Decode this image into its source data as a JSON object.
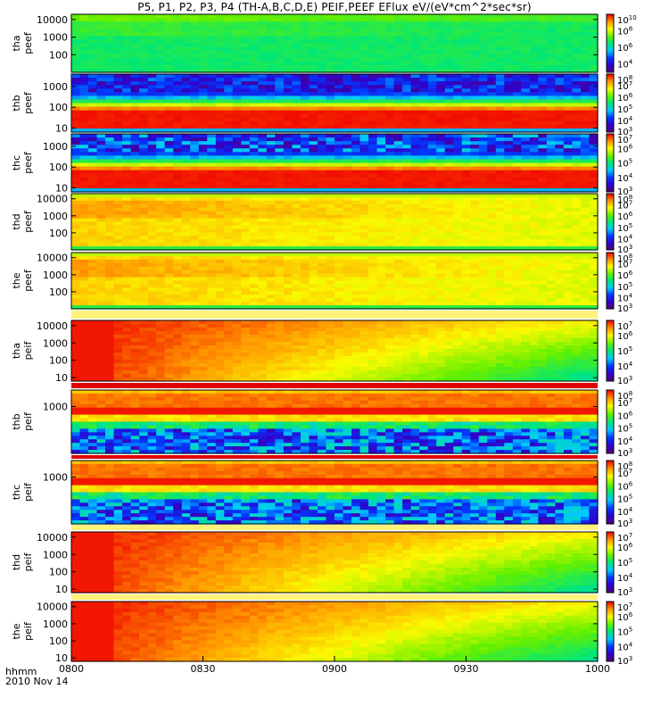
{
  "chart_data": {
    "type": "heatmap",
    "title": "P5, P1, P2, P3, P4 (TH-A,B,C,D,E) PEIF,PEEF EFlux eV/(eV*cm^2*sec*sr)",
    "x_axis": {
      "range": [
        "0800",
        "1000"
      ],
      "tick_labels": [
        "0800",
        "0830",
        "0900",
        "0930",
        "1000"
      ],
      "row_label": "hhmm",
      "date_label": "2010 Nov 14"
    },
    "panels": [
      {
        "probe": "tha",
        "product": "peef",
        "ylabels": [
          "10000",
          "1000",
          "100"
        ],
        "ylim_exp": [
          1,
          4.3
        ],
        "cbar_range_exp": [
          3,
          10
        ],
        "cbar_labels": [
          "10^10",
          "10^8",
          "10^6",
          "10^4"
        ],
        "pattern": "green_uniform"
      },
      {
        "probe": "thb",
        "product": "peef",
        "ylabels": [
          "1000",
          "100",
          "10"
        ],
        "ylim_exp": [
          0.8,
          3.6
        ],
        "cbar_range_exp": [
          3,
          8
        ],
        "cbar_labels": [
          "10^8",
          "10^7",
          "10^6",
          "10^5",
          "10^4",
          "10^3"
        ],
        "pattern": "band_low_red"
      },
      {
        "probe": "thc",
        "product": "peef",
        "ylabels": [
          "1000",
          "100",
          "10"
        ],
        "ylim_exp": [
          0.8,
          3.6
        ],
        "cbar_range_exp": [
          3,
          7
        ],
        "cbar_labels": [
          "10^7",
          "10^6",
          "10^5",
          "10^4",
          "10^3"
        ],
        "pattern": "band_low_red_noisy"
      },
      {
        "probe": "thd",
        "product": "peef",
        "ylabels": [
          "10000",
          "1000",
          "100"
        ],
        "ylim_exp": [
          1,
          4.3
        ],
        "cbar_range_exp": [
          3,
          8
        ],
        "cbar_labels": [
          "10^8",
          "10^7",
          "10^6",
          "10^5",
          "10^4",
          "10^3"
        ],
        "pattern": "yellow_orange"
      },
      {
        "probe": "the",
        "product": "peef",
        "ylabels": [
          "10000",
          "1000",
          "100"
        ],
        "ylim_exp": [
          1,
          4.3
        ],
        "cbar_range_exp": [
          3,
          8
        ],
        "cbar_labels": [
          "10^8",
          "10^7",
          "10^6",
          "10^5",
          "10^4",
          "10^3"
        ],
        "pattern": "yellow_orange"
      },
      {
        "probe": "tha",
        "product": "peif",
        "ylabels": [
          "10000",
          "1000",
          "100",
          "10"
        ],
        "ylim_exp": [
          0.8,
          4.3
        ],
        "cbar_range_exp": [
          3,
          7
        ],
        "cbar_labels": [
          "10^7",
          "10^6",
          "10^5",
          "10^4",
          "10^3"
        ],
        "pattern": "ion_decay"
      },
      {
        "probe": "thb",
        "product": "peif",
        "ylabels": [
          "1000"
        ],
        "ylim_exp": [
          1.3,
          3.6
        ],
        "cbar_range_exp": [
          3,
          8
        ],
        "cbar_labels": [
          "10^8",
          "10^7",
          "10^6",
          "10^5",
          "10^4",
          "10^3"
        ],
        "pattern": "ion_band"
      },
      {
        "probe": "thc",
        "product": "peif",
        "ylabels": [
          "1000"
        ],
        "ylim_exp": [
          1.3,
          3.6
        ],
        "cbar_range_exp": [
          3,
          8
        ],
        "cbar_labels": [
          "10^8",
          "10^7",
          "10^6",
          "10^5",
          "10^4",
          "10^3"
        ],
        "pattern": "ion_band"
      },
      {
        "probe": "thd",
        "product": "peif",
        "ylabels": [
          "10000",
          "1000",
          "100",
          "10"
        ],
        "ylim_exp": [
          0.8,
          4.3
        ],
        "cbar_range_exp": [
          3,
          7
        ],
        "cbar_labels": [
          "10^7",
          "10^6",
          "10^5",
          "10^4",
          "10^3"
        ],
        "pattern": "ion_decay"
      },
      {
        "probe": "the",
        "product": "peif",
        "ylabels": [
          "10000",
          "1000",
          "100",
          "10"
        ],
        "ylim_exp": [
          0.8,
          4.3
        ],
        "cbar_range_exp": [
          3,
          7
        ],
        "cbar_labels": [
          "10^7",
          "10^6",
          "10^5",
          "10^4",
          "10^3"
        ],
        "pattern": "ion_decay"
      }
    ]
  }
}
